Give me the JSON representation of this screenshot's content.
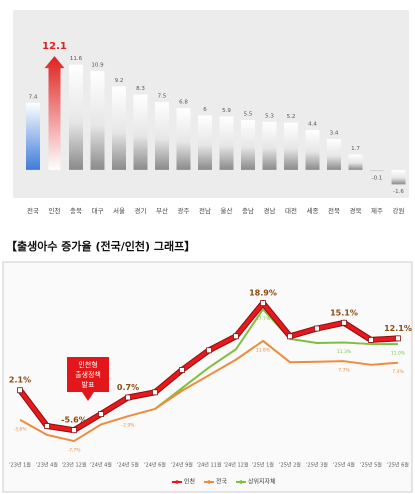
{
  "chart_data": [
    {
      "type": "bar",
      "categories": [
        "전국",
        "인천",
        "충북",
        "대구",
        "서울",
        "경기",
        "부산",
        "광주",
        "전남",
        "울산",
        "충남",
        "경남",
        "대전",
        "세종",
        "전북",
        "경북",
        "제주",
        "강원"
      ],
      "values": [
        7.4,
        12.1,
        11.6,
        10.9,
        9.2,
        8.3,
        7.5,
        6.8,
        6.0,
        5.9,
        5.5,
        5.3,
        5.2,
        4.4,
        3.4,
        1.7,
        -0.1,
        -1.6
      ],
      "highlight": {
        "전국": "#3d7bd9",
        "인천": "#e02020"
      },
      "color": "#9a9a9a",
      "ylim": [
        -2,
        13
      ]
    },
    {
      "type": "line",
      "title": "【출생아수 증가율 (전국/인천) 그래프】",
      "categories": [
        "'23년 1월",
        "'23년 4월",
        "'23년 12월",
        "'24년 4월",
        "'24년 5월",
        "'24년 6월",
        "'24년 9월",
        "'24년 11월",
        "'24년 12월",
        "'25년 1월",
        "'25년 2월",
        "'25년 3월",
        "'25년 4월",
        "'25년 5월",
        "'25년 6월"
      ],
      "series": [
        {
          "name": "인천",
          "color": "#e8191c",
          "values": [
            2.1,
            -4.8,
            -5.6,
            -2.5,
            0.7,
            1.7,
            6.0,
            9.8,
            12.5,
            18.9,
            12.5,
            14.0,
            15.1,
            11.8,
            12.1
          ],
          "value_labels": [
            "2.1%",
            null,
            "-5.6%",
            null,
            "0.7%",
            null,
            null,
            null,
            null,
            "18.9%",
            null,
            null,
            "15.1%",
            null,
            "12.1%"
          ]
        },
        {
          "name": "전국",
          "color": "#f08a3c",
          "values": [
            -3.6,
            -6.5,
            -7.7,
            -4.5,
            -2.9,
            -1.5,
            2.0,
            5.0,
            8.0,
            11.6,
            7.5,
            7.6,
            7.7,
            7.0,
            7.4
          ],
          "value_labels": [
            "-3.6%",
            null,
            "-7.7%",
            null,
            "-2.9%",
            null,
            null,
            null,
            null,
            "11.6%",
            null,
            null,
            "7.7%",
            null,
            "7.4%"
          ]
        },
        {
          "name": "상위지자체",
          "color": "#7fbf3f",
          "values": [
            null,
            null,
            null,
            null,
            null,
            -1.5,
            2.5,
            6.5,
            10.0,
            17.7,
            12.0,
            11.2,
            11.3,
            11.0,
            11.0
          ],
          "value_labels": [
            null,
            null,
            null,
            null,
            null,
            null,
            null,
            null,
            null,
            "17.7%",
            null,
            null,
            "11.3%",
            null,
            "11.0%"
          ]
        }
      ],
      "annotation": {
        "lines": [
          "인천형",
          "출생정책",
          "발표"
        ],
        "category": 2
      },
      "ylim": [
        -10,
        22
      ]
    }
  ]
}
